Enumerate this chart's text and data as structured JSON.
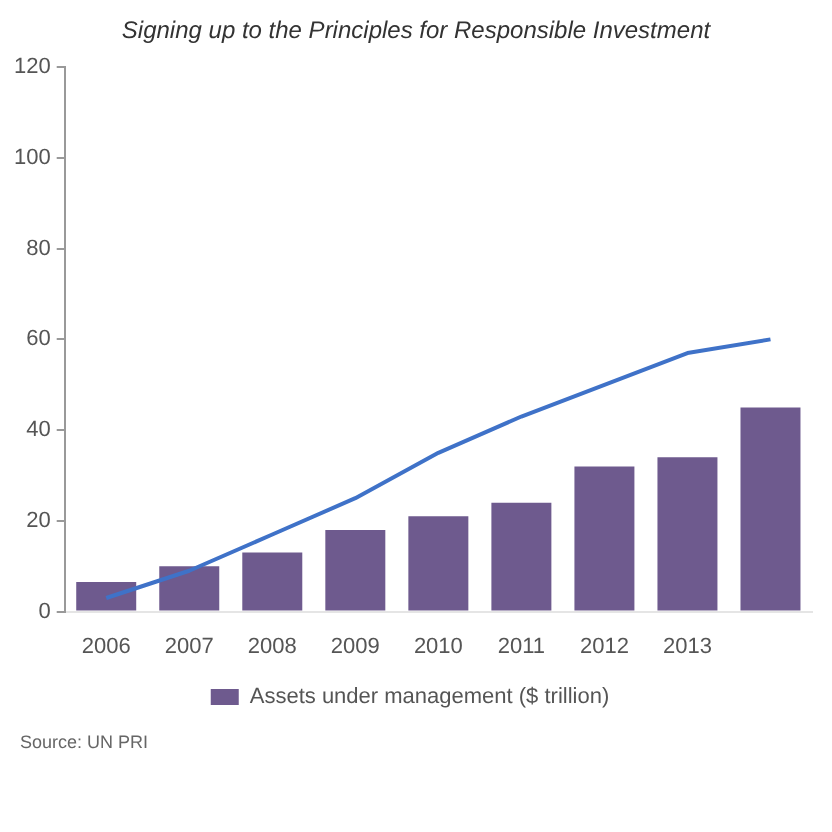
{
  "chart_data": {
    "type": "bar",
    "title": "Signing up to the Principles for Responsible Investment",
    "categories": [
      "2006",
      "2007",
      "2008",
      "2009",
      "2010",
      "2011",
      "2012",
      "2013",
      null
    ],
    "series": [
      {
        "name": "Assets under management ($ trillion)",
        "color": "#6e5a8e",
        "values": [
          6.5,
          10,
          13,
          18,
          21,
          24,
          32,
          34,
          45
        ]
      },
      {
        "type": "line",
        "color": "#3f72c8",
        "values": [
          3,
          9,
          17,
          25,
          35,
          43,
          50,
          57,
          60
        ]
      }
    ],
    "ylim": [
      0,
      120
    ],
    "yticks": [
      0,
      20,
      40,
      60,
      80,
      100,
      120
    ],
    "grid": false,
    "legend": "bottom",
    "marker": "none",
    "line_style": "solid",
    "annotations": [
      "Source: UN PRI"
    ]
  }
}
